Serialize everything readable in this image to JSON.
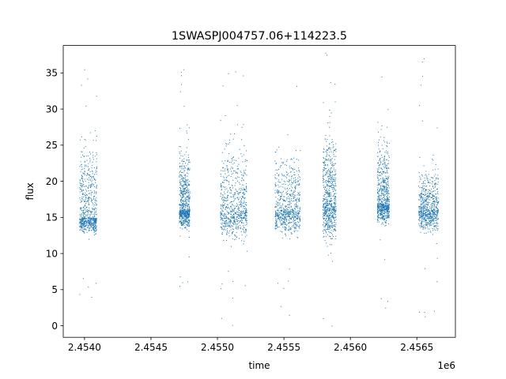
{
  "chart_data": {
    "type": "scatter",
    "title": "1SWASPJ004757.06+114223.5",
    "xlabel": "time",
    "ylabel": "flux",
    "x_offset_label": "1e6",
    "xlim": [
      2.45384,
      2.45679
    ],
    "ylim": [
      -1.6,
      38.8
    ],
    "x_ticks": [
      2.454,
      2.4545,
      2.455,
      2.4555,
      2.456,
      2.4565
    ],
    "x_tick_labels": [
      "2.4540",
      "2.4545",
      "2.4550",
      "2.4555",
      "2.4560",
      "2.4565"
    ],
    "y_ticks": [
      0,
      5,
      10,
      15,
      20,
      25,
      30,
      35
    ],
    "y_tick_labels": [
      "0",
      "5",
      "10",
      "15",
      "20",
      "25",
      "30",
      "35"
    ],
    "grid": false,
    "series_color": "#1f77b4",
    "observing_seasons": [
      {
        "x_start": 2.45396,
        "x_end": 2.45409,
        "flux_low": 11,
        "flux_median": 15,
        "flux_high": 34,
        "flux_min": 4,
        "flux_max": 35.5
      },
      {
        "x_start": 2.45471,
        "x_end": 2.45479,
        "flux_low": 12,
        "flux_median": 16,
        "flux_high": 33,
        "flux_min": 5.5,
        "flux_max": 35.5
      },
      {
        "x_start": 2.45502,
        "x_end": 2.45522,
        "flux_low": 9,
        "flux_median": 16,
        "flux_high": 35,
        "flux_min": 0.1,
        "flux_max": 35.2
      },
      {
        "x_start": 2.45543,
        "x_end": 2.45562,
        "flux_low": 10,
        "flux_median": 16,
        "flux_high": 33,
        "flux_min": 1.5,
        "flux_max": 33.2
      },
      {
        "x_start": 2.45579,
        "x_end": 2.45589,
        "flux_low": 8,
        "flux_median": 17,
        "flux_high": 37,
        "flux_min": 0,
        "flux_max": 37.8
      },
      {
        "x_start": 2.4562,
        "x_end": 2.45629,
        "flux_low": 12,
        "flux_median": 17,
        "flux_high": 34,
        "flux_min": 2.5,
        "flux_max": 34.5
      },
      {
        "x_start": 2.45651,
        "x_end": 2.45666,
        "flux_low": 11,
        "flux_median": 16,
        "flux_high": 27,
        "flux_min": 1.3,
        "flux_max": 37
      }
    ]
  }
}
